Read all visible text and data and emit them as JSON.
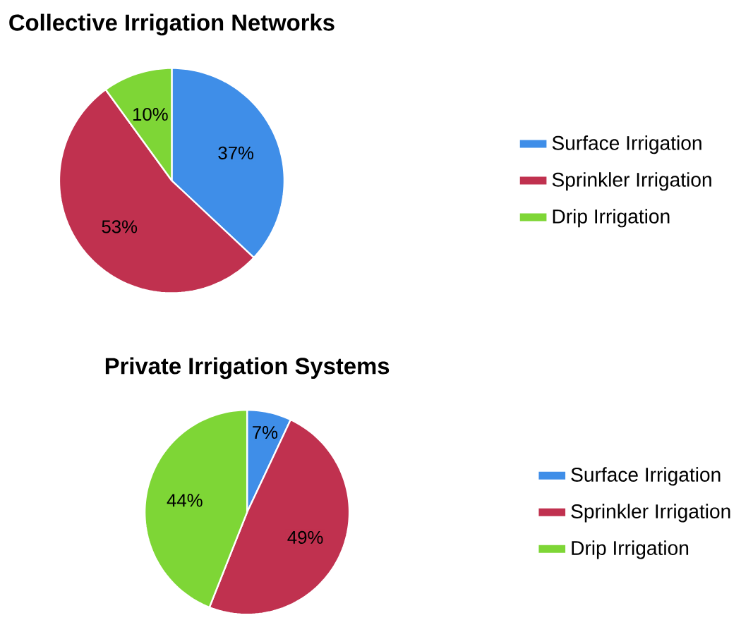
{
  "chart_data": [
    {
      "type": "pie",
      "title": "Collective Irrigation Networks",
      "categories": [
        "Surface Irrigation",
        "Sprinkler Irrigation",
        "Drip Irrigation"
      ],
      "values": [
        37,
        53,
        10
      ],
      "colors": [
        "#3f8ee8",
        "#c0314f",
        "#7ed636"
      ],
      "value_labels": [
        "37%",
        "53%",
        "10%"
      ],
      "legend": "right"
    },
    {
      "type": "pie",
      "title": "Private Irrigation Systems",
      "categories": [
        "Surface Irrigation",
        "Sprinkler Irrigation",
        "Drip Irrigation"
      ],
      "values": [
        7,
        49,
        44
      ],
      "colors": [
        "#3f8ee8",
        "#c0314f",
        "#7ed636"
      ],
      "value_labels": [
        "7%",
        "49%",
        "44%"
      ],
      "legend": "right"
    }
  ]
}
